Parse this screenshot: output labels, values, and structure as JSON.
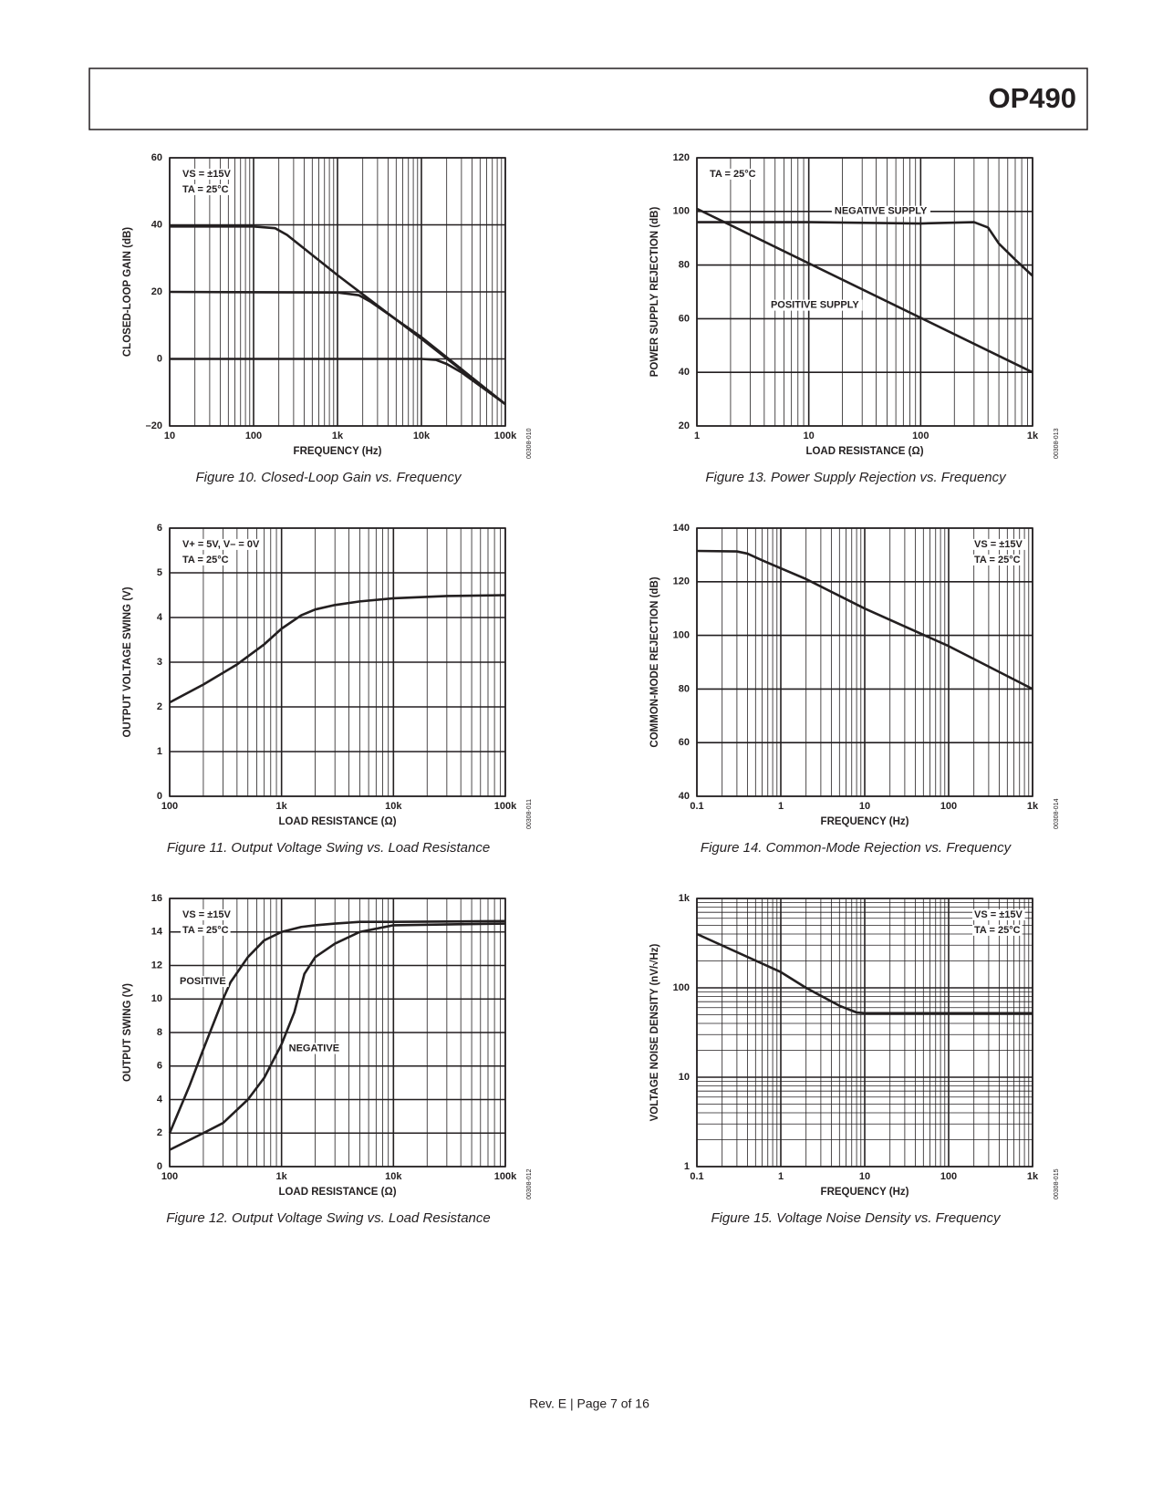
{
  "header": {
    "title": "OP490"
  },
  "footer": "Rev. E | Page 7 of 16",
  "chart_data": [
    {
      "type": "line",
      "caption": "Figure 10. Closed-Loop Gain vs. Frequency",
      "code": "00308-010",
      "xlabel": "FREQUENCY (Hz)",
      "ylabel": "CLOSED-LOOP GAIN (dB)",
      "annotations": [
        "VS = ±15V",
        "TA = 25°C"
      ],
      "annotation_corner": "upper left",
      "xlog": true,
      "ylog": false,
      "grid": true,
      "color": "#231f20",
      "xlim": [
        10,
        100000
      ],
      "xticks": [
        10,
        100,
        {
          "value": 1000,
          "label": "1k"
        },
        {
          "value": 10000,
          "label": "10k"
        },
        {
          "value": 100000,
          "label": "100k"
        }
      ],
      "ylim": [
        -20,
        60
      ],
      "yticks": [
        {
          "value": -20,
          "label": "–20"
        },
        0,
        20,
        40,
        60
      ],
      "series": [
        {
          "x": [
            10,
            100,
            180,
            250,
            1000,
            10000,
            100000
          ],
          "values": [
            39.5,
            39.5,
            39,
            37,
            25,
            6,
            -13.5
          ]
        },
        {
          "x": [
            10,
            1000,
            1800,
            2500,
            10000,
            100000
          ],
          "values": [
            20,
            19.8,
            19,
            17,
            6.5,
            -13.5
          ]
        },
        {
          "x": [
            10,
            10000,
            15000,
            20000,
            30000,
            100000
          ],
          "values": [
            0,
            0,
            -0.3,
            -1.5,
            -4,
            -13.5
          ]
        }
      ]
    },
    {
      "type": "line",
      "caption": "Figure 11. Output Voltage Swing vs. Load Resistance",
      "code": "00308-011",
      "xlabel": "LOAD RESISTANCE (Ω)",
      "ylabel": "OUTPUT VOLTAGE SWING (V)",
      "annotations": [
        "V+ = 5V, V– = 0V",
        "TA = 25°C"
      ],
      "annotation_corner": "upper left",
      "xlog": true,
      "ylog": false,
      "grid": true,
      "color": "#231f20",
      "xlim": [
        100,
        100000
      ],
      "xticks": [
        100,
        {
          "value": 1000,
          "label": "1k"
        },
        {
          "value": 10000,
          "label": "10k"
        },
        {
          "value": 100000,
          "label": "100k"
        }
      ],
      "ylim": [
        0,
        6
      ],
      "yticks": [
        0,
        1,
        2,
        3,
        4,
        5,
        6
      ],
      "series": [
        {
          "x": [
            100,
            200,
            400,
            700,
            1000,
            1500,
            2000,
            3000,
            5000,
            10000,
            30000,
            100000
          ],
          "values": [
            2.1,
            2.5,
            2.95,
            3.4,
            3.75,
            4.05,
            4.18,
            4.28,
            4.36,
            4.43,
            4.48,
            4.5
          ]
        }
      ]
    },
    {
      "type": "line",
      "caption": "Figure 12. Output Voltage Swing vs. Load Resistance",
      "code": "00308-012",
      "xlabel": "LOAD RESISTANCE (Ω)",
      "ylabel": "OUTPUT SWING (V)",
      "annotations": [
        "VS = ±15V",
        "TA = 25°C"
      ],
      "annotation_corner": "upper left",
      "xlog": true,
      "ylog": false,
      "grid": true,
      "color": "#231f20",
      "xlim": [
        100,
        100000
      ],
      "xticks": [
        100,
        {
          "value": 1000,
          "label": "1k"
        },
        {
          "value": 10000,
          "label": "10k"
        },
        {
          "value": 100000,
          "label": "100k"
        }
      ],
      "ylim": [
        0,
        16
      ],
      "yticks": [
        0,
        2,
        4,
        6,
        8,
        10,
        12,
        14,
        16
      ],
      "series": [
        {
          "name": "POSITIVE",
          "x": [
            100,
            150,
            200,
            300,
            350,
            500,
            700,
            1000,
            1500,
            2000,
            3000,
            5000,
            10000,
            100000
          ],
          "values": [
            2,
            4.8,
            7,
            10,
            11,
            12.5,
            13.5,
            14,
            14.3,
            14.4,
            14.5,
            14.6,
            14.6,
            14.65
          ]
        },
        {
          "name": "NEGATIVE",
          "x": [
            100,
            200,
            300,
            500,
            700,
            1000,
            1300,
            1600,
            2000,
            3000,
            5000,
            10000,
            100000
          ],
          "values": [
            1,
            2,
            2.6,
            4,
            5.3,
            7.3,
            9.2,
            11.5,
            12.5,
            13.3,
            14,
            14.4,
            14.5
          ]
        }
      ]
    },
    {
      "type": "line",
      "caption": "Figure 13. Power Supply Rejection vs. Frequency",
      "code": "00308-013",
      "xlabel": "LOAD RESISTANCE (Ω)",
      "ylabel": "POWER SUPPLY REJECTION (dB)",
      "annotations": [
        "TA = 25°C"
      ],
      "annotation_corner": "upper left",
      "xlog": true,
      "ylog": false,
      "grid": true,
      "color": "#231f20",
      "xlim": [
        1,
        1000
      ],
      "xticks": [
        1,
        10,
        100,
        {
          "value": 1000,
          "label": "1k"
        }
      ],
      "ylim": [
        20,
        120
      ],
      "yticks": [
        20,
        40,
        60,
        80,
        100,
        120
      ],
      "series": [
        {
          "name": "NEGATIVE SUPPLY",
          "x": [
            1,
            10,
            100,
            300,
            400,
            500,
            700,
            1000
          ],
          "values": [
            96,
            96,
            95.5,
            96,
            94,
            88,
            82,
            76
          ]
        },
        {
          "name": "POSITIVE SUPPLY",
          "x": [
            1,
            1000
          ],
          "values": [
            101,
            40
          ]
        }
      ]
    },
    {
      "type": "line",
      "caption": "Figure 14. Common-Mode Rejection vs. Frequency",
      "code": "00308-014",
      "xlabel": "FREQUENCY (Hz)",
      "ylabel": "COMMON-MODE REJECTION (dB)",
      "annotations": [
        "VS = ±15V",
        "TA = 25°C"
      ],
      "annotation_corner": "upper right",
      "xlog": true,
      "ylog": false,
      "grid": true,
      "color": "#231f20",
      "xlim": [
        0.1,
        1000
      ],
      "xticks": [
        0.1,
        1,
        10,
        100,
        {
          "value": 1000,
          "label": "1k"
        }
      ],
      "ylim": [
        40,
        140
      ],
      "yticks": [
        40,
        60,
        80,
        100,
        120,
        140
      ],
      "series": [
        {
          "x": [
            0.1,
            0.3,
            0.4,
            0.6,
            1,
            2,
            10,
            100,
            1000
          ],
          "values": [
            131.5,
            131.3,
            130.5,
            128,
            125,
            121,
            110,
            96,
            80
          ]
        }
      ]
    },
    {
      "type": "line",
      "caption": "Figure 15. Voltage Noise Density vs. Frequency",
      "code": "00308-015",
      "xlabel": "FREQUENCY (Hz)",
      "ylabel": "VOLTAGE NOISE DENSITY (nV/√Hz)",
      "annotations": [
        "VS = ±15V",
        "TA = 25°C"
      ],
      "annotation_corner": "upper right",
      "xlog": true,
      "ylog": true,
      "grid": true,
      "color": "#231f20",
      "xlim": [
        0.1,
        1000
      ],
      "xticks": [
        0.1,
        1,
        10,
        100,
        {
          "value": 1000,
          "label": "1k"
        }
      ],
      "ylim": [
        1,
        1000
      ],
      "yticks": [
        1,
        10,
        100,
        {
          "value": 1000,
          "label": "1k"
        }
      ],
      "series": [
        {
          "x": [
            0.1,
            1,
            2,
            5,
            8,
            10,
            100,
            1000
          ],
          "values": [
            400,
            150,
            100,
            63,
            53,
            52,
            52,
            52
          ]
        }
      ]
    }
  ]
}
